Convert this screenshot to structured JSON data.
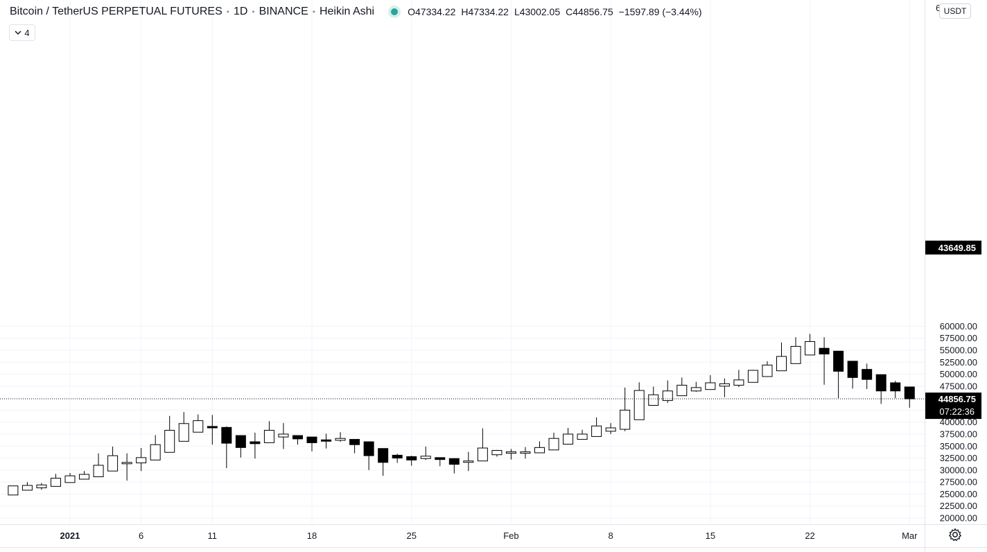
{
  "header": {
    "symbol": "Bitcoin / TetherUS PERPETUAL FUTURES",
    "interval": "1D",
    "exchange": "BINANCE",
    "chart_style": "Heikin Ashi",
    "o_label": "O",
    "o_value": "47334.22",
    "h_label": "H",
    "h_value": "47334.22",
    "l_label": "L",
    "l_value": "43002.05",
    "c_label": "C",
    "c_value": "44856.75",
    "change": "−1597.89 (−3.44%)",
    "status_color": "#26a69a"
  },
  "toolbar": {
    "collapse_count": "4",
    "currency_button": "USDT"
  },
  "price_labels": {
    "last_price": "44856.75",
    "countdown": "07:22:36",
    "low_price": "43649.85",
    "top_cut": "6"
  },
  "colors": {
    "up_fill": "#ffffff",
    "down_fill": "#000000",
    "wick": "#000000",
    "grid": "#f0f3fa"
  },
  "chart_data": {
    "type": "candlestick",
    "title": "",
    "xlabel": "",
    "ylabel": "",
    "ylim": [
      19500,
      62500
    ],
    "y_ticks": [
      20000,
      22500,
      25000,
      27500,
      30000,
      32500,
      35000,
      37500,
      40000,
      42500,
      45000,
      47500,
      50000,
      52500,
      55000,
      57500,
      60000
    ],
    "y_tick_labels": [
      "20000.00",
      "22500.00",
      "25000.00",
      "27500.00",
      "30000.00",
      "32500.00",
      "35000.00",
      "37500.00",
      "40000.00",
      "42500.00",
      "45000.00",
      "47500.00",
      "50000.00",
      "52500.00",
      "55000.00",
      "57500.00",
      "60000.00"
    ],
    "x_tick_labels": [
      {
        "label": "2021",
        "day": 0,
        "bold": true
      },
      {
        "label": "6",
        "day": 5
      },
      {
        "label": "11",
        "day": 10
      },
      {
        "label": "18",
        "day": 17
      },
      {
        "label": "25",
        "day": 24
      },
      {
        "label": "Feb",
        "day": 31
      },
      {
        "label": "8",
        "day": 38
      },
      {
        "label": "15",
        "day": 45
      },
      {
        "label": "22",
        "day": 52
      },
      {
        "label": "Mar",
        "day": 59
      }
    ],
    "last_price": 44856.75,
    "candles": [
      {
        "d": -4,
        "o": 24800,
        "h": 26700,
        "l": 24800,
        "c": 26700
      },
      {
        "d": -3,
        "o": 25800,
        "h": 27500,
        "l": 25800,
        "c": 26800
      },
      {
        "d": -2,
        "o": 26300,
        "h": 27300,
        "l": 25900,
        "c": 26900
      },
      {
        "d": -1,
        "o": 26600,
        "h": 29200,
        "l": 26600,
        "c": 28300
      },
      {
        "d": 0,
        "o": 27400,
        "h": 29400,
        "l": 27400,
        "c": 28800
      },
      {
        "d": 1,
        "o": 28100,
        "h": 29800,
        "l": 28100,
        "c": 29100
      },
      {
        "d": 2,
        "o": 28600,
        "h": 33500,
        "l": 28600,
        "c": 31000
      },
      {
        "d": 3,
        "o": 29800,
        "h": 34900,
        "l": 29800,
        "c": 33000
      },
      {
        "d": 4,
        "o": 31400,
        "h": 33500,
        "l": 27800,
        "c": 31600
      },
      {
        "d": 5,
        "o": 31500,
        "h": 34600,
        "l": 29800,
        "c": 32600
      },
      {
        "d": 6,
        "o": 32100,
        "h": 37300,
        "l": 32100,
        "c": 35300
      },
      {
        "d": 7,
        "o": 33700,
        "h": 41300,
        "l": 33700,
        "c": 38300
      },
      {
        "d": 8,
        "o": 36000,
        "h": 42100,
        "l": 36000,
        "c": 39700
      },
      {
        "d": 9,
        "o": 37900,
        "h": 41600,
        "l": 37900,
        "c": 40300
      },
      {
        "d": 10,
        "o": 39100,
        "h": 41500,
        "l": 35300,
        "c": 38800
      },
      {
        "d": 11,
        "o": 38900,
        "h": 39100,
        "l": 30400,
        "c": 35600
      },
      {
        "d": 12,
        "o": 37200,
        "h": 37200,
        "l": 32600,
        "c": 34700
      },
      {
        "d": 13,
        "o": 35900,
        "h": 37800,
        "l": 32400,
        "c": 35500
      },
      {
        "d": 14,
        "o": 35700,
        "h": 40200,
        "l": 35700,
        "c": 38300
      },
      {
        "d": 15,
        "o": 36900,
        "h": 39800,
        "l": 34400,
        "c": 37500
      },
      {
        "d": 16,
        "o": 37200,
        "h": 37200,
        "l": 35300,
        "c": 36500
      },
      {
        "d": 17,
        "o": 36900,
        "h": 36900,
        "l": 33900,
        "c": 35700
      },
      {
        "d": 18,
        "o": 36300,
        "h": 37600,
        "l": 34500,
        "c": 36200
      },
      {
        "d": 19,
        "o": 36200,
        "h": 37900,
        "l": 35900,
        "c": 36600
      },
      {
        "d": 20,
        "o": 36400,
        "h": 36400,
        "l": 33500,
        "c": 35300
      },
      {
        "d": 21,
        "o": 35900,
        "h": 35900,
        "l": 30000,
        "c": 33000
      },
      {
        "d": 22,
        "o": 34500,
        "h": 34500,
        "l": 28800,
        "c": 31600
      },
      {
        "d": 23,
        "o": 33100,
        "h": 33400,
        "l": 31500,
        "c": 32500
      },
      {
        "d": 24,
        "o": 32800,
        "h": 33000,
        "l": 30900,
        "c": 32100
      },
      {
        "d": 25,
        "o": 32400,
        "h": 34900,
        "l": 32100,
        "c": 32900
      },
      {
        "d": 26,
        "o": 32600,
        "h": 32600,
        "l": 30800,
        "c": 32200
      },
      {
        "d": 27,
        "o": 32400,
        "h": 32400,
        "l": 29300,
        "c": 31200
      },
      {
        "d": 28,
        "o": 31800,
        "h": 33800,
        "l": 29800,
        "c": 31900
      },
      {
        "d": 29,
        "o": 31900,
        "h": 38700,
        "l": 31900,
        "c": 34600
      },
      {
        "d": 30,
        "o": 33200,
        "h": 34200,
        "l": 32800,
        "c": 34100
      },
      {
        "d": 31,
        "o": 33600,
        "h": 34400,
        "l": 32200,
        "c": 33800
      },
      {
        "d": 32,
        "o": 33500,
        "h": 34800,
        "l": 32400,
        "c": 33800
      },
      {
        "d": 33,
        "o": 33600,
        "h": 36000,
        "l": 33600,
        "c": 34700
      },
      {
        "d": 34,
        "o": 34200,
        "h": 37800,
        "l": 34200,
        "c": 36600
      },
      {
        "d": 35,
        "o": 35400,
        "h": 38800,
        "l": 35400,
        "c": 37500
      },
      {
        "d": 36,
        "o": 36400,
        "h": 38400,
        "l": 36400,
        "c": 37500
      },
      {
        "d": 37,
        "o": 37000,
        "h": 41000,
        "l": 37000,
        "c": 39200
      },
      {
        "d": 38,
        "o": 38100,
        "h": 39800,
        "l": 37500,
        "c": 38800
      },
      {
        "d": 39,
        "o": 38500,
        "h": 47200,
        "l": 38100,
        "c": 42500
      },
      {
        "d": 40,
        "o": 40500,
        "h": 48300,
        "l": 40500,
        "c": 46600
      },
      {
        "d": 41,
        "o": 43500,
        "h": 47400,
        "l": 43500,
        "c": 45700
      },
      {
        "d": 42,
        "o": 44500,
        "h": 48700,
        "l": 44000,
        "c": 46500
      },
      {
        "d": 43,
        "o": 45500,
        "h": 49300,
        "l": 45500,
        "c": 47700
      },
      {
        "d": 44,
        "o": 46500,
        "h": 48400,
        "l": 46300,
        "c": 47200
      },
      {
        "d": 45,
        "o": 46800,
        "h": 49800,
        "l": 46800,
        "c": 48200
      },
      {
        "d": 46,
        "o": 47500,
        "h": 49100,
        "l": 45200,
        "c": 48000
      },
      {
        "d": 47,
        "o": 47700,
        "h": 50900,
        "l": 47300,
        "c": 48800
      },
      {
        "d": 48,
        "o": 48300,
        "h": 50900,
        "l": 48300,
        "c": 50800
      },
      {
        "d": 49,
        "o": 49500,
        "h": 52700,
        "l": 49500,
        "c": 51900
      },
      {
        "d": 50,
        "o": 50700,
        "h": 56600,
        "l": 50700,
        "c": 53700
      },
      {
        "d": 51,
        "o": 52200,
        "h": 57700,
        "l": 52200,
        "c": 55800
      },
      {
        "d": 52,
        "o": 54000,
        "h": 58400,
        "l": 54000,
        "c": 56800
      },
      {
        "d": 53,
        "o": 55400,
        "h": 57700,
        "l": 47800,
        "c": 54200
      },
      {
        "d": 54,
        "o": 54800,
        "h": 54800,
        "l": 45000,
        "c": 50600
      },
      {
        "d": 55,
        "o": 52700,
        "h": 52700,
        "l": 47000,
        "c": 49300
      },
      {
        "d": 56,
        "o": 51000,
        "h": 52200,
        "l": 46900,
        "c": 48900
      },
      {
        "d": 57,
        "o": 49900,
        "h": 49900,
        "l": 43800,
        "c": 46500
      },
      {
        "d": 58,
        "o": 48200,
        "h": 48600,
        "l": 45000,
        "c": 46500
      },
      {
        "d": 59,
        "o": 47334.22,
        "h": 47334.22,
        "l": 43002.05,
        "c": 44856.75
      }
    ]
  }
}
